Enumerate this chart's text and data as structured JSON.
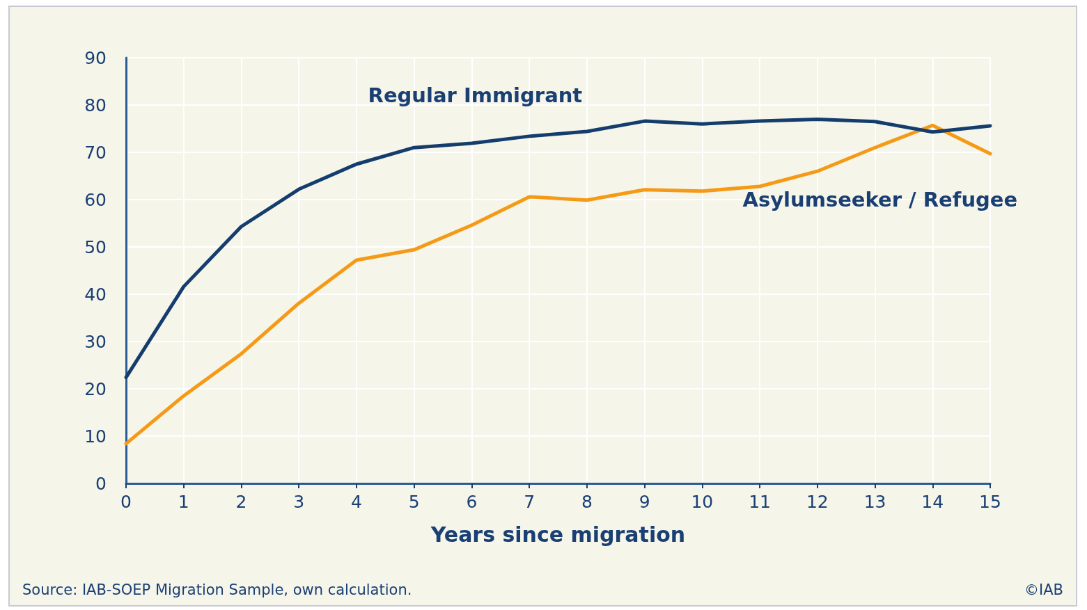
{
  "chart_data": {
    "type": "line",
    "xlabel": "Years since migration",
    "x": [
      0,
      1,
      2,
      3,
      4,
      5,
      6,
      7,
      8,
      9,
      10,
      11,
      12,
      13,
      14,
      15
    ],
    "series": [
      {
        "name": "Regular Immigrant",
        "color": "#143d6e",
        "values": [
          22.4,
          41.6,
          54.3,
          62.2,
          67.5,
          71,
          71.9,
          73.4,
          74.4,
          76.6,
          76,
          76.6,
          77,
          76.5,
          74.3,
          75.6
        ]
      },
      {
        "name": "Asylumseeker / Refugee",
        "color": "#f59a16",
        "values": [
          8.4,
          18.5,
          27.4,
          38.1,
          47.2,
          49.4,
          54.6,
          60.6,
          59.9,
          62.1,
          61.8,
          62.8,
          66,
          71,
          75.7,
          69.7
        ]
      }
    ],
    "xlim": [
      0,
      15
    ],
    "xticks": [
      0,
      1,
      2,
      3,
      4,
      5,
      6,
      7,
      8,
      9,
      10,
      11,
      12,
      13,
      14,
      15
    ],
    "ylim": [
      0,
      90
    ],
    "yticks": [
      0,
      10,
      20,
      30,
      40,
      50,
      60,
      70,
      80,
      90
    ],
    "grid": true,
    "legend": false,
    "marker": "none",
    "line_style": "solid",
    "annotations": [
      "Source: IAB-SOEP Migration Sample, own calculation.",
      "©IAB"
    ]
  }
}
